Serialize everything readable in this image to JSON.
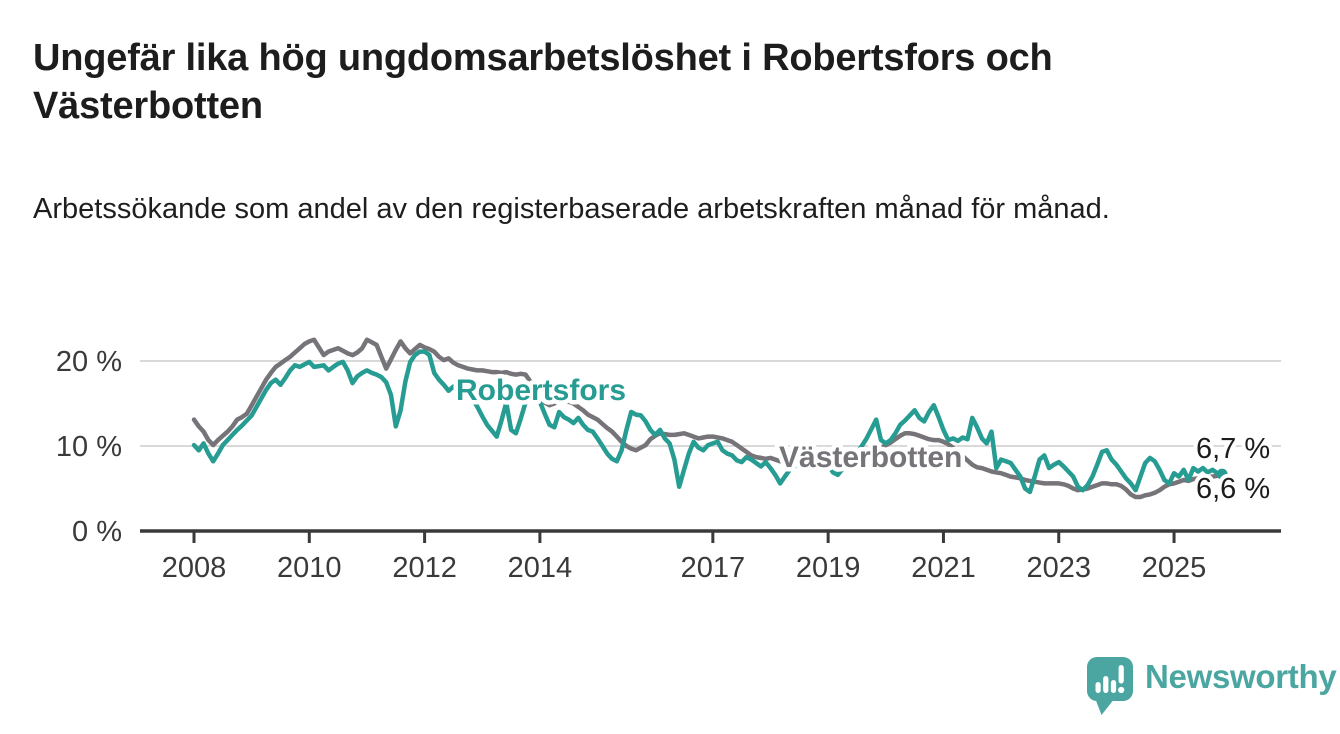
{
  "header": {
    "title": "Ungefär lika hög ungdomsarbetslöshet i Robertsfors och Västerbotten",
    "subtitle": "Arbetssökande som andel av den registerbaserade arbetskraften månad för månad."
  },
  "chart_data": {
    "type": "line",
    "title": "Ungefär lika hög ungdomsarbetslöshet i Robertsfors och Västerbotten",
    "subtitle": "Arbetssökande som andel av den registerbaserade arbetskraften månad för månad.",
    "unit": "%",
    "x_start": "2008-01",
    "x_end": "2025-11",
    "x_frequency": "monthly",
    "x_tick_years": [
      2008,
      2010,
      2012,
      2014,
      2017,
      2019,
      2021,
      2023,
      2025
    ],
    "x_tick_labels": [
      "2008",
      "2010",
      "2012",
      "2014",
      "2017",
      "2019",
      "2021",
      "2023",
      "2025"
    ],
    "y_ticks": [
      {
        "label": "0 %",
        "value": 0
      },
      {
        "label": "10 %",
        "value": 10
      },
      {
        "label": "20 %",
        "value": 20
      }
    ],
    "ylim": [
      0,
      24.5
    ],
    "grid": "horizontal",
    "legend_position": "inline-labels",
    "colors": {
      "robertsfors": "#269c92",
      "vasterbotten": "#767379",
      "gridline": "#d9d9d9",
      "axis": "#3a3a3a",
      "text": "#1d1d1d"
    },
    "series": [
      {
        "name": "Västerbotten",
        "color": "#767379",
        "end_label": "6,6 %",
        "values": [
          13.1,
          12.3,
          11.7,
          10.7,
          10.1,
          10.7,
          11.2,
          11.7,
          12.3,
          13.1,
          13.4,
          13.8,
          14.8,
          15.8,
          16.8,
          17.8,
          18.6,
          19.3,
          19.7,
          20.1,
          20.5,
          21.0,
          21.5,
          22.0,
          22.3,
          22.5,
          21.6,
          20.7,
          21.1,
          21.3,
          21.5,
          21.2,
          20.9,
          20.7,
          21.0,
          21.5,
          22.5,
          22.2,
          21.9,
          20.5,
          19.1,
          20.2,
          21.3,
          22.3,
          21.5,
          20.9,
          21.4,
          21.9,
          21.6,
          21.4,
          21.1,
          20.5,
          20.1,
          20.3,
          19.8,
          19.5,
          19.3,
          19.1,
          19.0,
          18.9,
          18.9,
          18.8,
          18.7,
          18.7,
          18.6,
          18.7,
          18.5,
          18.4,
          18.5,
          18.4,
          17.6,
          16.5,
          15.7,
          15.1,
          14.8,
          15.0,
          15.4,
          15.3,
          15.2,
          15.0,
          14.6,
          14.2,
          13.7,
          13.4,
          13.1,
          12.6,
          12.1,
          11.7,
          11.1,
          10.5,
          10.0,
          9.7,
          9.5,
          9.8,
          10.1,
          10.8,
          11.2,
          11.5,
          11.4,
          11.3,
          11.3,
          11.4,
          11.5,
          11.3,
          11.1,
          10.9,
          11.0,
          11.1,
          11.1,
          11.0,
          10.9,
          10.7,
          10.5,
          10.1,
          9.7,
          9.3,
          8.9,
          8.7,
          8.6,
          8.5,
          8.6,
          8.4,
          8.2,
          8.1,
          8.0,
          8.0,
          8.1,
          8.2,
          8.4,
          8.3,
          8.2,
          8.1,
          8.0,
          7.9,
          7.8,
          7.9,
          8.0,
          8.2,
          8.4,
          8.6,
          8.9,
          9.2,
          9.5,
          9.8,
          10.1,
          10.4,
          10.8,
          11.2,
          11.5,
          11.5,
          11.4,
          11.2,
          11.0,
          10.8,
          10.7,
          10.7,
          10.5,
          10.2,
          9.8,
          9.3,
          8.8,
          8.3,
          7.8,
          7.5,
          7.4,
          7.2,
          7.0,
          6.9,
          6.8,
          6.6,
          6.4,
          6.3,
          6.2,
          6.0,
          5.9,
          5.8,
          5.7,
          5.6,
          5.6,
          5.6,
          5.6,
          5.5,
          5.3,
          5.0,
          4.8,
          4.9,
          5.0,
          5.2,
          5.4,
          5.6,
          5.6,
          5.5,
          5.5,
          5.3,
          4.9,
          4.3,
          4.0,
          4.0,
          4.2,
          4.3,
          4.5,
          4.8,
          5.2,
          5.5,
          5.6,
          5.8,
          6.0,
          5.9,
          6.1,
          6.2,
          6.2,
          6.3,
          6.4,
          6.5,
          6.6
        ]
      },
      {
        "name": "Robertsfors",
        "color": "#269c92",
        "end_label": "6,7 %",
        "values": [
          10.1,
          9.5,
          10.3,
          9.1,
          8.2,
          9.1,
          10.1,
          10.7,
          11.3,
          11.9,
          12.4,
          13.0,
          13.6,
          14.6,
          15.6,
          16.6,
          17.4,
          17.8,
          17.2,
          18.0,
          18.9,
          19.5,
          19.3,
          19.6,
          19.9,
          19.3,
          19.4,
          19.5,
          18.9,
          19.3,
          19.7,
          19.9,
          18.9,
          17.4,
          18.2,
          18.6,
          18.9,
          18.6,
          18.4,
          18.1,
          17.5,
          16.0,
          12.3,
          14.2,
          17.6,
          19.9,
          20.7,
          21.1,
          21.1,
          20.7,
          18.6,
          17.8,
          17.2,
          16.5,
          17.0,
          16.3,
          16.8,
          16.0,
          15.5,
          14.6,
          13.5,
          12.5,
          11.8,
          11.1,
          13.0,
          15.1,
          11.9,
          11.5,
          13.2,
          15.1,
          15.8,
          16.6,
          15.2,
          13.8,
          12.5,
          12.2,
          14.0,
          13.4,
          13.1,
          12.7,
          13.3,
          12.5,
          11.9,
          11.7,
          10.9,
          10.0,
          9.1,
          8.5,
          8.2,
          9.5,
          11.9,
          14.0,
          13.7,
          13.6,
          12.9,
          11.9,
          11.3,
          11.9,
          10.9,
          10.3,
          8.4,
          5.2,
          7.2,
          9.1,
          10.5,
          9.8,
          9.5,
          10.1,
          10.3,
          10.5,
          9.5,
          9.1,
          8.9,
          8.3,
          8.1,
          8.7,
          8.4,
          8.0,
          7.6,
          8.1,
          7.4,
          6.6,
          5.6,
          6.4,
          7.2,
          7.6,
          8.0,
          8.4,
          8.0,
          8.4,
          8.8,
          8.0,
          7.8,
          6.9,
          6.6,
          7.3,
          8.0,
          8.6,
          9.2,
          10.0,
          10.9,
          12.0,
          13.1,
          10.7,
          10.3,
          10.7,
          11.5,
          12.5,
          13.0,
          13.6,
          14.2,
          13.3,
          12.9,
          14.0,
          14.8,
          13.4,
          11.9,
          10.7,
          10.9,
          10.6,
          11.0,
          10.8,
          13.3,
          12.2,
          10.9,
          10.3,
          11.7,
          7.4,
          8.4,
          8.2,
          8.0,
          7.2,
          6.4,
          5.0,
          4.6,
          6.4,
          8.4,
          8.9,
          7.4,
          7.8,
          8.1,
          7.6,
          7.0,
          6.4,
          5.2,
          4.8,
          5.4,
          6.4,
          7.8,
          9.3,
          9.5,
          8.4,
          7.8,
          7.0,
          6.2,
          5.6,
          4.8,
          6.4,
          8.0,
          8.6,
          8.2,
          7.2,
          6.0,
          5.6,
          6.8,
          6.4,
          7.2,
          6.0,
          7.4,
          7.0,
          7.4,
          6.9,
          7.2,
          6.8,
          6.7
        ]
      }
    ]
  },
  "branding": {
    "logo_text": "Newsworthy",
    "logo_color": "#4ba6a1",
    "logo_icon": "newsworthy-speech-bubble-bar-chart-icon"
  }
}
